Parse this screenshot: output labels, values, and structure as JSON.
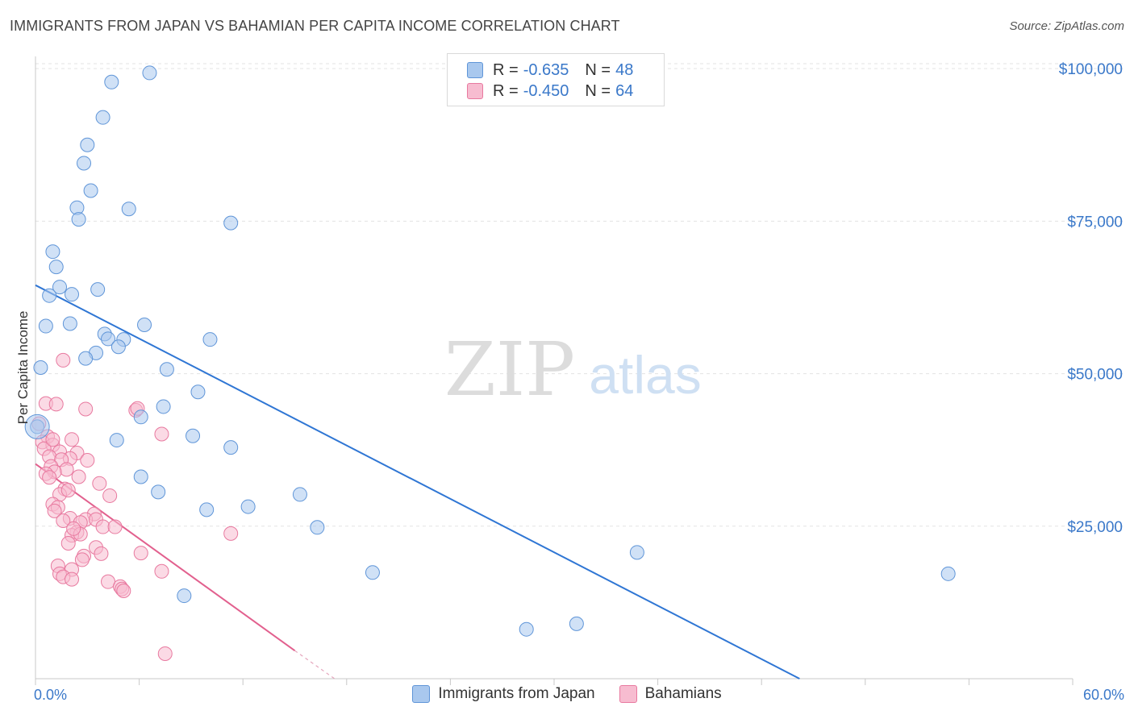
{
  "header": {
    "title": "IMMIGRANTS FROM JAPAN VS BAHAMIAN PER CAPITA INCOME CORRELATION CHART",
    "source": "Source: ZipAtlas.com"
  },
  "watermark": {
    "zip": "ZIP",
    "atlas": "atlas"
  },
  "legend": {
    "japan": {
      "r_label": "R =",
      "r_value": "-0.635",
      "n_label": "N =",
      "n_value": "48"
    },
    "bahamas": {
      "r_label": "R =",
      "r_value": "-0.450",
      "n_label": "N =",
      "n_value": "64"
    }
  },
  "colors": {
    "japan_fill": "#a9c8ee",
    "japan_stroke": "#5f95d8",
    "japan_line": "#2f76d4",
    "bahamas_fill": "#f7bcd0",
    "bahamas_stroke": "#e8799f",
    "bahamas_line": "#e2608e",
    "axis_text": "#3a78c9",
    "grid": "#e3e3e3"
  },
  "chart_data": {
    "type": "scatter",
    "title": "IMMIGRANTS FROM JAPAN VS BAHAMIAN PER CAPITA INCOME CORRELATION CHART",
    "xlabel": "",
    "ylabel": "Per Capita Income",
    "xlim": [
      0,
      60
    ],
    "ylim": [
      0,
      102000
    ],
    "x_tick_labels": [
      "0.0%",
      "60.0%"
    ],
    "y_ticks": [
      25000,
      50000,
      75000,
      100000
    ],
    "y_tick_labels": [
      "$25,000",
      "$50,000",
      "$75,000",
      "$100,000"
    ],
    "legend_position": "top-center",
    "series": [
      {
        "name": "Immigrants from Japan",
        "r": -0.635,
        "n": 48,
        "trend": {
          "x": [
            0,
            44.2
          ],
          "y": [
            64500,
            0
          ]
        },
        "points": [
          [
            4.4,
            97800
          ],
          [
            6.6,
            99300
          ],
          [
            3.9,
            92000
          ],
          [
            3.0,
            87500
          ],
          [
            2.8,
            84500
          ],
          [
            3.2,
            80000
          ],
          [
            2.4,
            77200
          ],
          [
            5.4,
            77000
          ],
          [
            2.5,
            75300
          ],
          [
            11.3,
            74700
          ],
          [
            1.0,
            70000
          ],
          [
            1.2,
            67500
          ],
          [
            1.4,
            64200
          ],
          [
            3.6,
            63800
          ],
          [
            2.1,
            63000
          ],
          [
            0.8,
            62800
          ],
          [
            2.0,
            58200
          ],
          [
            0.6,
            57800
          ],
          [
            6.3,
            58000
          ],
          [
            4.0,
            56500
          ],
          [
            4.2,
            55700
          ],
          [
            5.1,
            55600
          ],
          [
            10.1,
            55600
          ],
          [
            4.8,
            54400
          ],
          [
            3.5,
            53400
          ],
          [
            2.9,
            52500
          ],
          [
            0.3,
            51000
          ],
          [
            7.6,
            50700
          ],
          [
            9.4,
            47000
          ],
          [
            7.4,
            44600
          ],
          [
            6.1,
            42900
          ],
          [
            0.1,
            41300
          ],
          [
            9.1,
            39800
          ],
          [
            4.7,
            39100
          ],
          [
            11.3,
            37900
          ],
          [
            6.1,
            33100
          ],
          [
            7.1,
            30600
          ],
          [
            15.3,
            30200
          ],
          [
            9.9,
            27700
          ],
          [
            12.3,
            28200
          ],
          [
            16.3,
            24800
          ],
          [
            19.5,
            17400
          ],
          [
            34.8,
            20700
          ],
          [
            8.6,
            13600
          ],
          [
            28.4,
            8100
          ],
          [
            31.3,
            9000
          ],
          [
            52.8,
            17200
          ],
          [
            0.1,
            41300
          ]
        ]
      },
      {
        "name": "Bahamians",
        "r": -0.45,
        "n": 64,
        "trend": {
          "x": [
            0,
            15.0
          ],
          "y": [
            35200,
            4600
          ]
        },
        "trend_dashed": {
          "x": [
            15.0,
            17.3
          ],
          "y": [
            4600,
            0
          ]
        },
        "points": [
          [
            1.6,
            52200
          ],
          [
            0.6,
            45100
          ],
          [
            1.2,
            45000
          ],
          [
            2.9,
            44200
          ],
          [
            5.8,
            44000
          ],
          [
            5.9,
            44300
          ],
          [
            0.2,
            41800
          ],
          [
            7.3,
            40100
          ],
          [
            0.7,
            39700
          ],
          [
            2.1,
            39200
          ],
          [
            0.4,
            38800
          ],
          [
            1.0,
            38300
          ],
          [
            0.5,
            37700
          ],
          [
            1.4,
            37200
          ],
          [
            2.4,
            37000
          ],
          [
            0.8,
            36400
          ],
          [
            2.0,
            36100
          ],
          [
            1.5,
            35900
          ],
          [
            0.9,
            34800
          ],
          [
            1.8,
            34300
          ],
          [
            1.1,
            33900
          ],
          [
            0.6,
            33600
          ],
          [
            2.5,
            33100
          ],
          [
            3.7,
            32000
          ],
          [
            1.7,
            31100
          ],
          [
            1.4,
            30200
          ],
          [
            4.3,
            30000
          ],
          [
            1.0,
            28600
          ],
          [
            1.3,
            28100
          ],
          [
            1.1,
            27500
          ],
          [
            3.4,
            27000
          ],
          [
            2.0,
            26300
          ],
          [
            1.6,
            25900
          ],
          [
            2.9,
            26100
          ],
          [
            3.5,
            26100
          ],
          [
            2.6,
            25600
          ],
          [
            3.9,
            24900
          ],
          [
            2.4,
            24000
          ],
          [
            2.1,
            23500
          ],
          [
            11.3,
            23800
          ],
          [
            2.6,
            23700
          ],
          [
            1.9,
            22200
          ],
          [
            3.5,
            21500
          ],
          [
            6.1,
            20600
          ],
          [
            2.8,
            20100
          ],
          [
            3.8,
            20500
          ],
          [
            2.7,
            19500
          ],
          [
            1.3,
            18500
          ],
          [
            2.1,
            17900
          ],
          [
            7.3,
            17600
          ],
          [
            1.4,
            17200
          ],
          [
            1.6,
            16700
          ],
          [
            2.1,
            16300
          ],
          [
            4.2,
            15900
          ],
          [
            4.9,
            15100
          ],
          [
            5.0,
            14700
          ],
          [
            5.1,
            14400
          ],
          [
            7.5,
            4100
          ],
          [
            1.0,
            39200
          ],
          [
            0.8,
            33000
          ],
          [
            3.0,
            35800
          ],
          [
            1.9,
            30900
          ],
          [
            2.2,
            24600
          ],
          [
            4.6,
            24900
          ]
        ]
      }
    ]
  },
  "bottom_legend": {
    "japan_label": "Immigrants from Japan",
    "bahamas_label": "Bahamians"
  }
}
